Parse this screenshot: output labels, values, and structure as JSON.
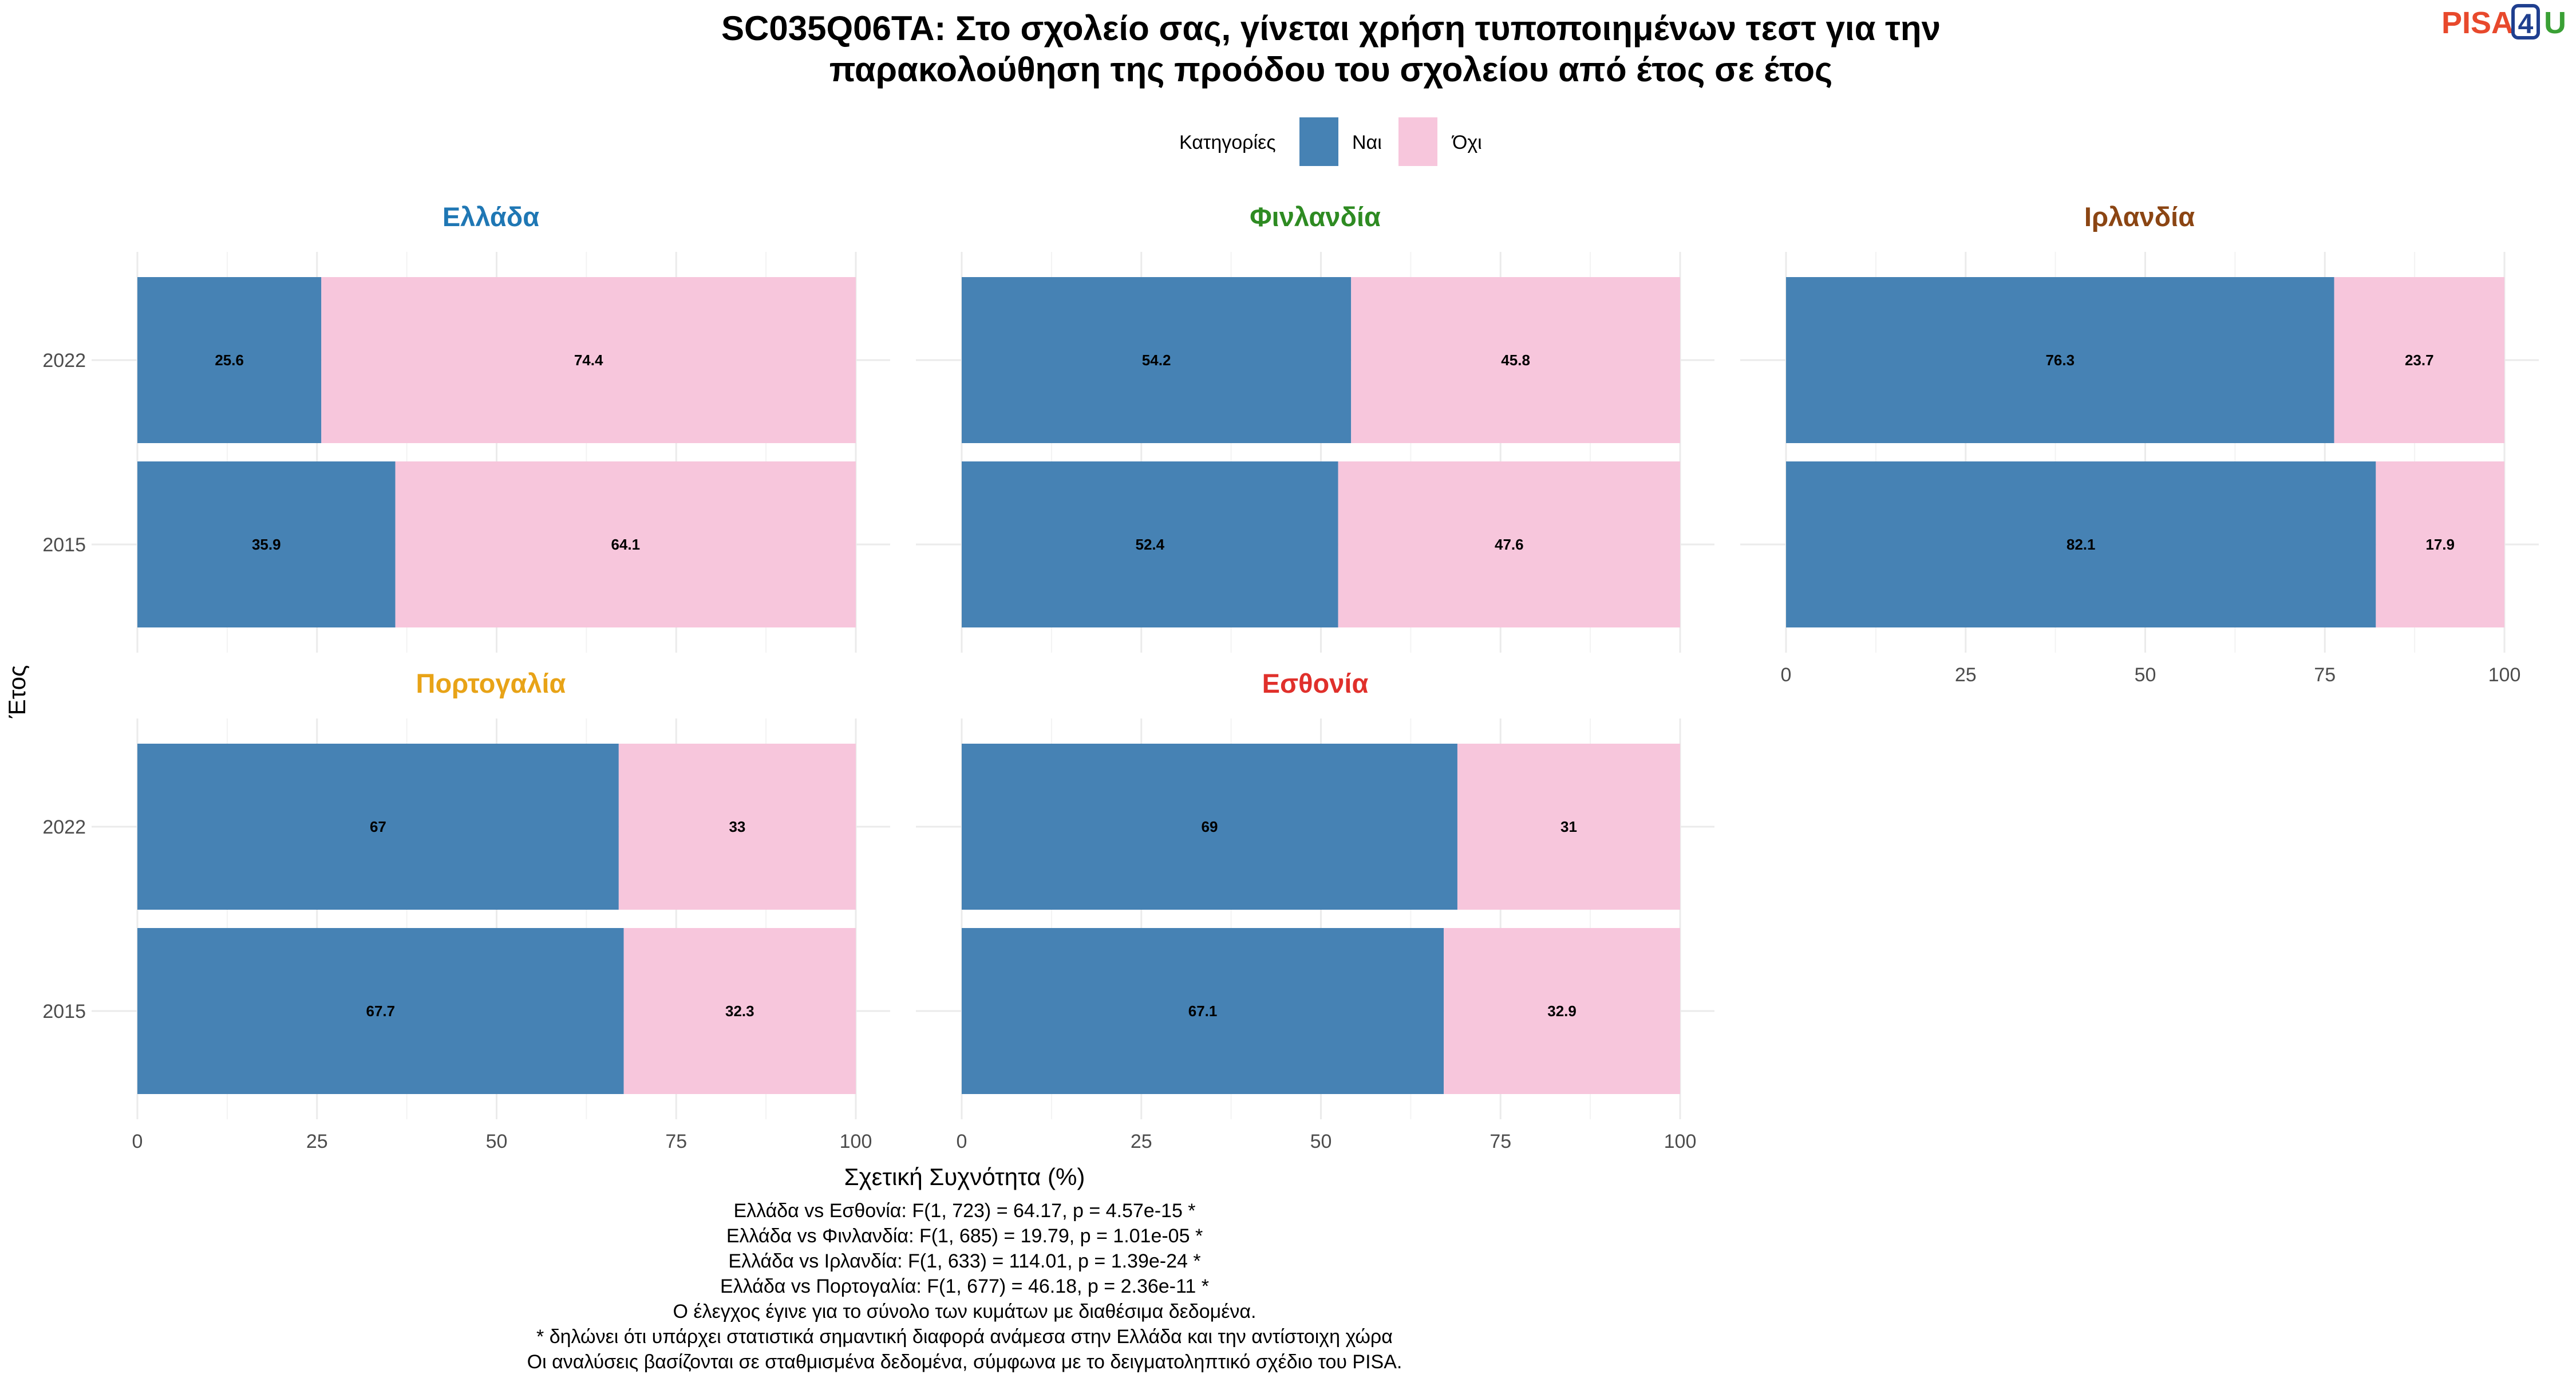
{
  "logo": {
    "p1": "PISA",
    "p2": "4",
    "p3": "U",
    "c1": "#e8492c",
    "c2": "#1f3f8f",
    "c3": "#3aa035"
  },
  "caption": [
    "Ελλάδα vs Εσθονία: F(1, 723) = 64.17, p = 4.57e-15 *",
    "Ελλάδα vs Φινλανδία: F(1, 685) = 19.79, p = 1.01e-05 *",
    "Ελλάδα vs Ιρλανδία: F(1, 633) = 114.01, p = 1.39e-24 *",
    "Ελλάδα vs Πορτογαλία: F(1, 677) = 46.18, p = 2.36e-11 *",
    "Ο έλεγχος έγινε για το σύνολο των κυμάτων με διαθέσιμα δεδομένα.",
    "* δηλώνει ότι υπάρχει στατιστικά σημαντική διαφορά ανάμεσα στην Ελλάδα και την αντίστοιχη χώρα",
    "Οι αναλύσεις βασίζονται σε σταθμισμένα δεδομένα, σύμφωνα με το δειγματοληπτικό σχέδιο του PISA."
  ],
  "chart_data": {
    "type": "bar",
    "orientation": "horizontal",
    "stacked": true,
    "title": [
      "SC035Q06TA: Στο σχολείο σας, γίνεται χρήση τυποποιημένων τεστ για την",
      "παρακολούθηση της προόδου του σχολείου από έτος σε έτος"
    ],
    "xlabel": "Σχετική Συχνότητα (%)",
    "ylabel": "Έτος",
    "xlim": [
      0,
      100
    ],
    "xticks": [
      "0",
      "25",
      "50",
      "75",
      "100"
    ],
    "grid": true,
    "legend": {
      "title": "Κατηγορίες",
      "position": "top",
      "items": [
        {
          "label": "Ναι",
          "color": "#4682b4"
        },
        {
          "label": "Όχι",
          "color": "#f7c6dc"
        }
      ]
    },
    "categories": [
      "2022",
      "2015"
    ],
    "panels": [
      {
        "name": "Ελλάδα",
        "color": "#1f77b4",
        "series": [
          {
            "name": "Ναι",
            "values": [
              25.6,
              35.9
            ]
          },
          {
            "name": "Όχι",
            "values": [
              74.4,
              64.1
            ]
          }
        ],
        "labels": {
          "Ναι": [
            "25.6",
            "35.9"
          ],
          "Όχι": [
            "74.4",
            "64.1"
          ]
        }
      },
      {
        "name": "Φινλανδία",
        "color": "#2e8b22",
        "series": [
          {
            "name": "Ναι",
            "values": [
              54.2,
              52.4
            ]
          },
          {
            "name": "Όχι",
            "values": [
              45.8,
              47.6
            ]
          }
        ],
        "labels": {
          "Ναι": [
            "54.2",
            "52.4"
          ],
          "Όχι": [
            "45.8",
            "47.6"
          ]
        }
      },
      {
        "name": "Ιρλανδία",
        "color": "#8b4513",
        "series": [
          {
            "name": "Ναι",
            "values": [
              76.3,
              82.1
            ]
          },
          {
            "name": "Όχι",
            "values": [
              23.7,
              17.9
            ]
          }
        ],
        "labels": {
          "Ναι": [
            "76.3",
            "82.1"
          ],
          "Όχι": [
            "23.7",
            "17.9"
          ]
        }
      },
      {
        "name": "Πορτογαλία",
        "color": "#e8a317",
        "series": [
          {
            "name": "Ναι",
            "values": [
              67,
              67.7
            ]
          },
          {
            "name": "Όχι",
            "values": [
              33,
              32.3
            ]
          }
        ],
        "labels": {
          "Ναι": [
            "67",
            "67.7"
          ],
          "Όχι": [
            "33",
            "32.3"
          ]
        }
      },
      {
        "name": "Εσθονία",
        "color": "#e0302b",
        "series": [
          {
            "name": "Ναι",
            "values": [
              69,
              67.1
            ]
          },
          {
            "name": "Όχι",
            "values": [
              31,
              32.9
            ]
          }
        ],
        "labels": {
          "Ναι": [
            "69",
            "67.1"
          ],
          "Όχι": [
            "31",
            "32.9"
          ]
        }
      }
    ]
  }
}
